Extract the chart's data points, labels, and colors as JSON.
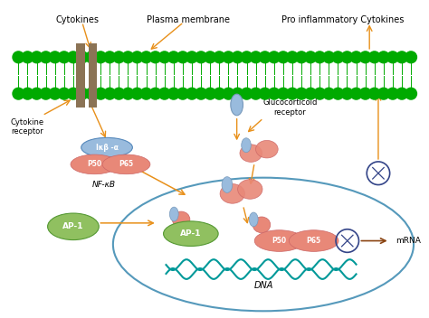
{
  "bg_color": "#ffffff",
  "membrane_color": "#00aa00",
  "receptor_color": "#8B7355",
  "labels": {
    "cytokines": "Cytokines",
    "plasma_membrane": "Plasma membrane",
    "pro_inflammatory": "Pro inflammatory Cytokines",
    "cytokine_receptor": "Cytokine\nreceptor",
    "glucocorticoid_receptor": "Glucocorticoid\nreceptor",
    "nfkb": "NF-κB",
    "ap1_outside": "AP-1",
    "ap1_inside": "AP-1",
    "dna": "DNA",
    "mrna": "mRNA",
    "ikba": "Iκβ -α",
    "p50_left": "P50",
    "p65_left": "P65",
    "p50_right": "P50",
    "p65_right": "P65"
  },
  "arrow_color": "#E8901A",
  "nucleus_edge": "#5599BB",
  "p_color": "#E88878",
  "ikba_color": "#99BBDD",
  "ap1_color": "#90C060",
  "dna_color": "#009999",
  "inhibit_color": "#334488",
  "mrna_arrow_color": "#8B4513"
}
